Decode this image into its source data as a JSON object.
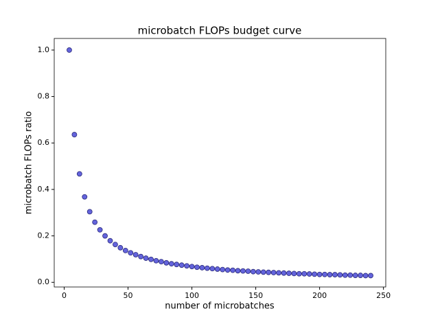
{
  "chart_data": {
    "type": "scatter",
    "title": "microbatch FLOPs budget curve",
    "x_label": "number of microbatches",
    "y_label": "microbatch FLOPs ratio",
    "color": "#6464dc",
    "edge_color": "#2a2a7a",
    "x": [
      4,
      8,
      12,
      16,
      20,
      24,
      28,
      32,
      36,
      40,
      44,
      48,
      52,
      56,
      60,
      64,
      68,
      72,
      76,
      80,
      84,
      88,
      92,
      96,
      100,
      104,
      108,
      112,
      116,
      120,
      124,
      128,
      132,
      136,
      140,
      144,
      148,
      152,
      156,
      160,
      164,
      168,
      172,
      176,
      180,
      184,
      188,
      192,
      196,
      200,
      204,
      208,
      212,
      216,
      220,
      224,
      228,
      232,
      236,
      240
    ],
    "values": [
      1.0,
      0.636,
      0.467,
      0.368,
      0.304,
      0.259,
      0.226,
      0.2,
      0.179,
      0.163,
      0.149,
      0.137,
      0.127,
      0.119,
      0.111,
      0.104,
      0.099,
      0.093,
      0.089,
      0.084,
      0.08,
      0.077,
      0.074,
      0.071,
      0.068,
      0.065,
      0.063,
      0.061,
      0.059,
      0.057,
      0.055,
      0.053,
      0.052,
      0.05,
      0.049,
      0.048,
      0.046,
      0.045,
      0.044,
      0.043,
      0.042,
      0.041,
      0.04,
      0.039,
      0.038,
      0.037,
      0.037,
      0.036,
      0.035,
      0.034,
      0.034,
      0.033,
      0.033,
      0.032,
      0.031,
      0.031,
      0.03,
      0.03,
      0.029,
      0.029
    ],
    "xlim": [
      -7.8,
      251.8
    ],
    "ylim": [
      -0.02,
      1.05
    ],
    "xticks": [
      0,
      50,
      100,
      150,
      200,
      250
    ],
    "yticks": [
      {
        "value": 0,
        "label": "0.0"
      },
      {
        "value": 0.2,
        "label": "0.2"
      },
      {
        "value": 0.4,
        "label": "0.4"
      },
      {
        "value": 0.6,
        "label": "0.6"
      },
      {
        "value": 0.8,
        "label": "0.8"
      },
      {
        "value": 1,
        "label": "1.0"
      }
    ]
  }
}
